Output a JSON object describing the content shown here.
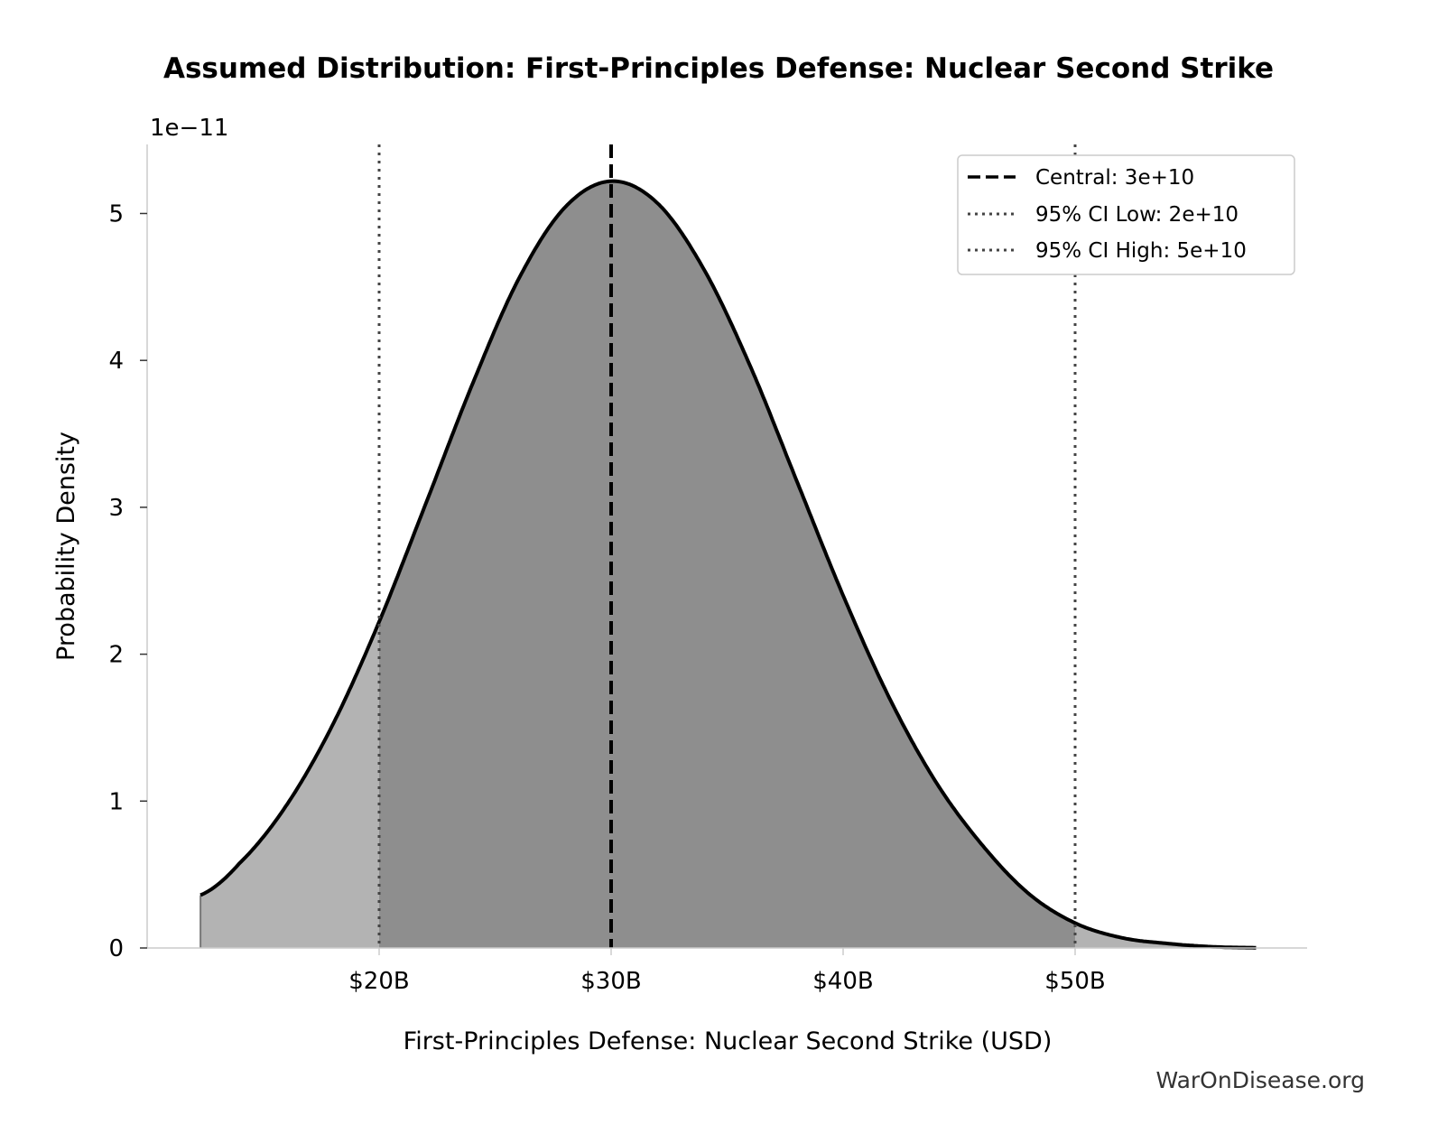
{
  "chart_data": {
    "type": "area",
    "title": "Assumed Distribution: First-Principles Defense: Nuclear Second Strike",
    "xlabel": "First-Principles Defense: Nuclear Second Strike (USD)",
    "ylabel": "Probability Density",
    "y_offset_label": "1e−11",
    "x_ticks": [
      {
        "value": 20,
        "label": "$20B"
      },
      {
        "value": 30,
        "label": "$30B"
      },
      {
        "value": 40,
        "label": "$40B"
      },
      {
        "value": 50,
        "label": "$50B"
      }
    ],
    "y_ticks": [
      {
        "value": 0,
        "label": "0"
      },
      {
        "value": 1,
        "label": "1"
      },
      {
        "value": 2,
        "label": "2"
      },
      {
        "value": 3,
        "label": "3"
      },
      {
        "value": 4,
        "label": "4"
      },
      {
        "value": 5,
        "label": "5"
      }
    ],
    "xlim": [
      10.0,
      60.0
    ],
    "ylim": [
      0,
      5.47
    ],
    "x_units": "billion USD",
    "y_units": "1e-11 probability density",
    "series": [
      {
        "x": [
          12.3,
          14,
          16,
          18,
          20,
          22,
          24,
          26,
          28,
          30,
          32,
          34,
          36,
          38,
          40,
          42,
          44,
          46,
          48,
          50,
          52,
          54,
          56,
          57.8
        ],
        "y": [
          0.36,
          0.58,
          0.97,
          1.52,
          2.22,
          3.02,
          3.83,
          4.55,
          5.04,
          5.22,
          5.07,
          4.62,
          3.96,
          3.18,
          2.4,
          1.7,
          1.13,
          0.7,
          0.37,
          0.17,
          0.07,
          0.03,
          0.008,
          0.002
        ]
      }
    ],
    "shaded_regions": [
      {
        "from": 12.3,
        "to": 20,
        "color": "#b3b3b3"
      },
      {
        "from": 20,
        "to": 50,
        "color": "#8e8e8e"
      },
      {
        "from": 50,
        "to": 57.8,
        "color": "#b3b3b3"
      }
    ],
    "reference_lines": [
      {
        "x": 30,
        "style": "dashed",
        "color": "#000000",
        "label": "Central: 3e+10"
      },
      {
        "x": 20,
        "style": "dotted",
        "color": "#444444",
        "label": "95% CI Low: 2e+10"
      },
      {
        "x": 50,
        "style": "dotted",
        "color": "#444444",
        "label": "95% CI High: 5e+10"
      }
    ],
    "legend_position": "top-right",
    "grid": false
  },
  "watermark": "WarOnDisease.org"
}
